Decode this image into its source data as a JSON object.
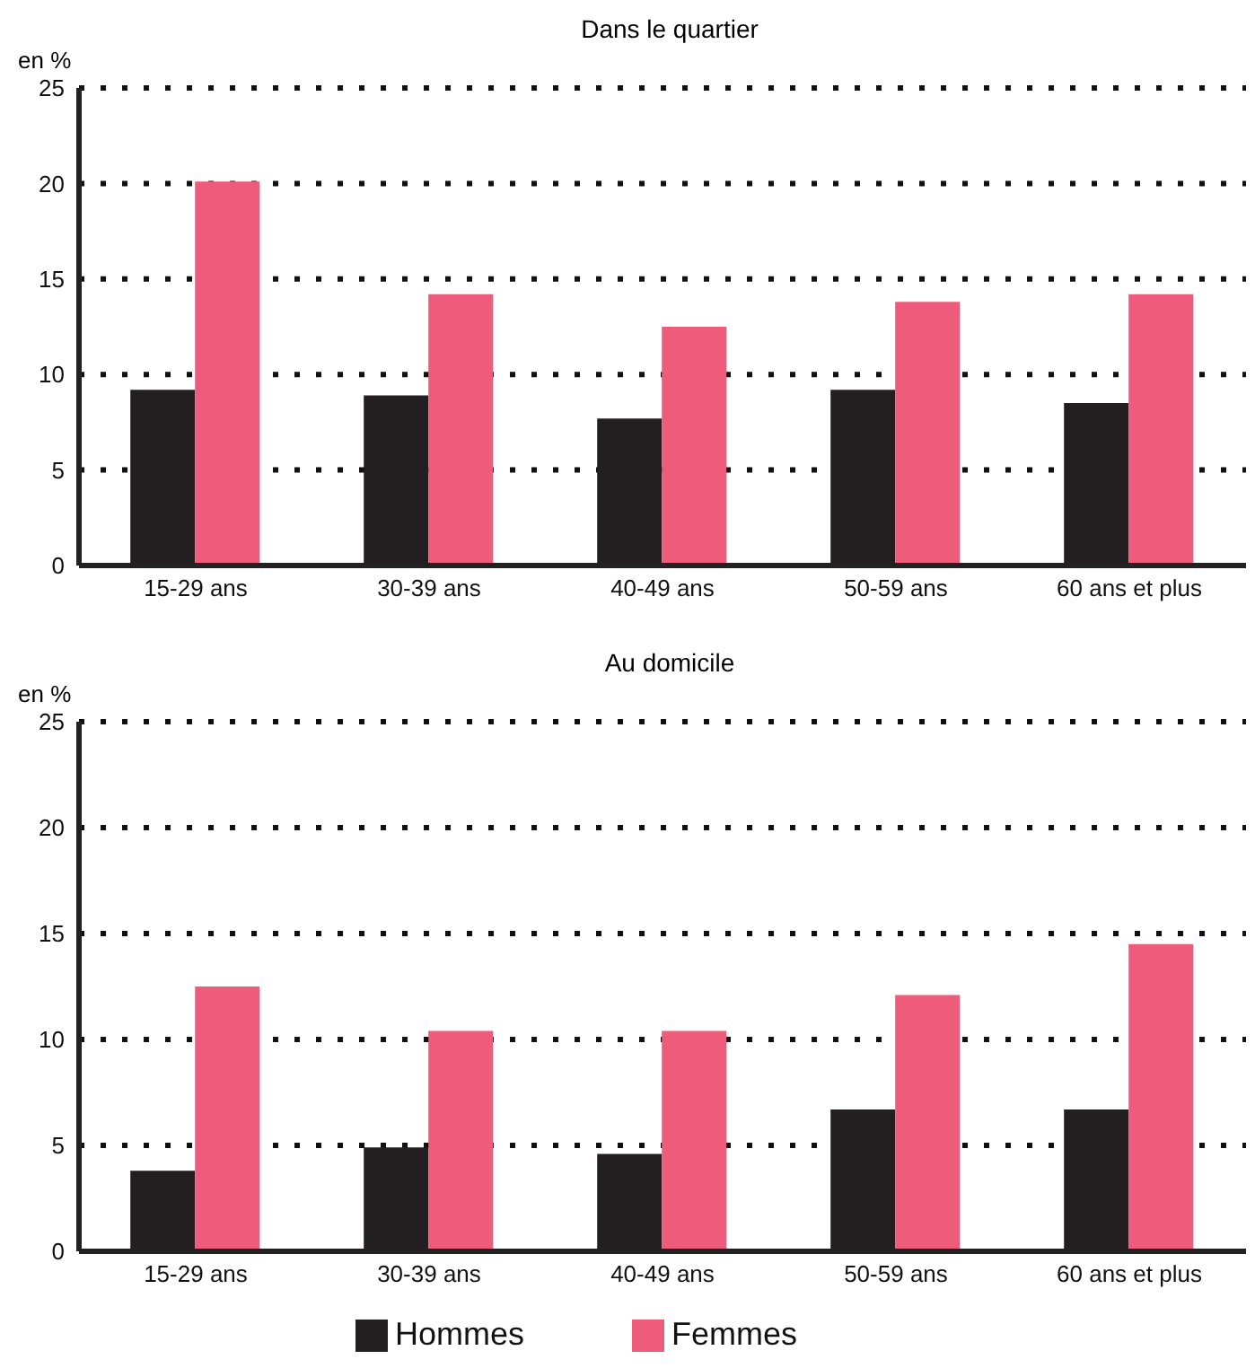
{
  "chart_data": [
    {
      "type": "bar",
      "title": "Dans le quartier",
      "ylabel": "en %",
      "categories": [
        "15-29 ans",
        "30-39 ans",
        "40-49 ans",
        "50-59 ans",
        "60 ans et plus"
      ],
      "series": [
        {
          "color": "#231f20",
          "values": [
            9.2,
            8.9,
            7.7,
            9.2,
            8.5
          ]
        },
        {
          "color": "#ef5b7a",
          "values": [
            20.1,
            14.2,
            12.5,
            13.8,
            14.2
          ]
        }
      ],
      "ylim": [
        0,
        25
      ],
      "yticks": [
        0,
        5,
        10,
        15,
        20,
        25
      ],
      "grid": "y",
      "legend": false
    },
    {
      "type": "bar",
      "title": "Au domicile",
      "ylabel": "en %",
      "categories": [
        "15-29 ans",
        "30-39 ans",
        "40-49 ans",
        "50-59 ans",
        "60 ans et plus"
      ],
      "series": [
        {
          "name": "Hommes",
          "color": "#231f20",
          "values": [
            3.8,
            4.9,
            4.6,
            6.7,
            6.7
          ]
        },
        {
          "name": "Femmes",
          "color": "#ef5b7a",
          "values": [
            12.5,
            10.4,
            10.4,
            12.1,
            14.5
          ]
        }
      ],
      "ylim": [
        0,
        25
      ],
      "yticks": [
        0,
        5,
        10,
        15,
        20,
        25
      ],
      "grid": "y",
      "legend": "bottom"
    }
  ]
}
